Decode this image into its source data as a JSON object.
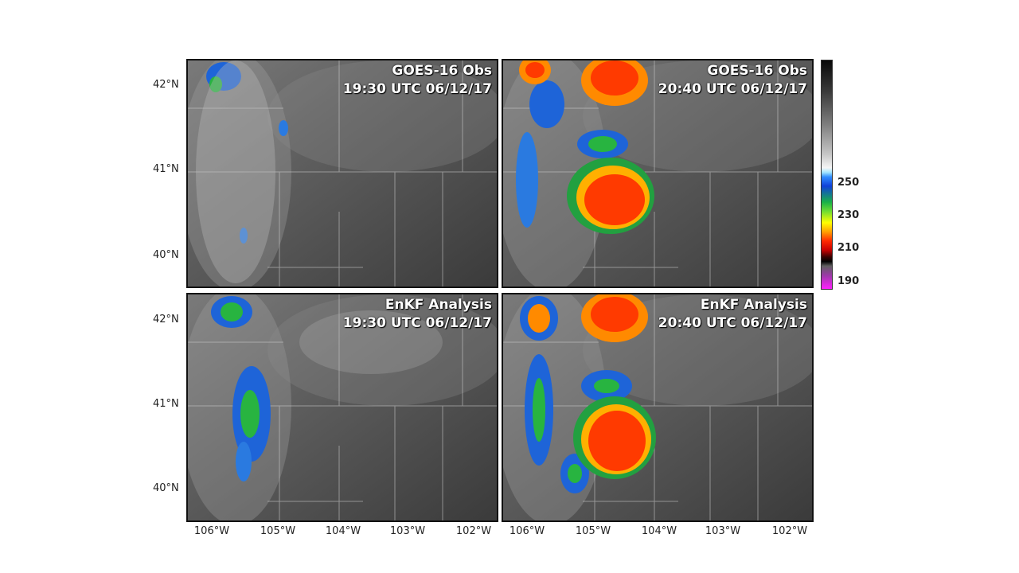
{
  "panels": [
    {
      "title_line1": "GOES-16 Obs",
      "title_line2": "19:30 UTC 06/12/17"
    },
    {
      "title_line1": "GOES-16 Obs",
      "title_line2": "20:40 UTC 06/12/17"
    },
    {
      "title_line1": "EnKF Analysis",
      "title_line2": "19:30 UTC 06/12/17"
    },
    {
      "title_line1": "EnKF Analysis",
      "title_line2": "20:40 UTC 06/12/17"
    }
  ],
  "latitude_labels": [
    "42°N",
    "41°N",
    "40°N"
  ],
  "longitude_labels": [
    "106°W",
    "105°W",
    "104°W",
    "103°W",
    "102°W"
  ],
  "colorbar": {
    "ticks": [
      "250",
      "230",
      "210",
      "190"
    ],
    "colors": [
      "#080808",
      "#c6c6c6",
      "#2f8cff",
      "#18b048",
      "#ffff00",
      "#ff2a00",
      "#000000",
      "#ff20ff"
    ]
  }
}
